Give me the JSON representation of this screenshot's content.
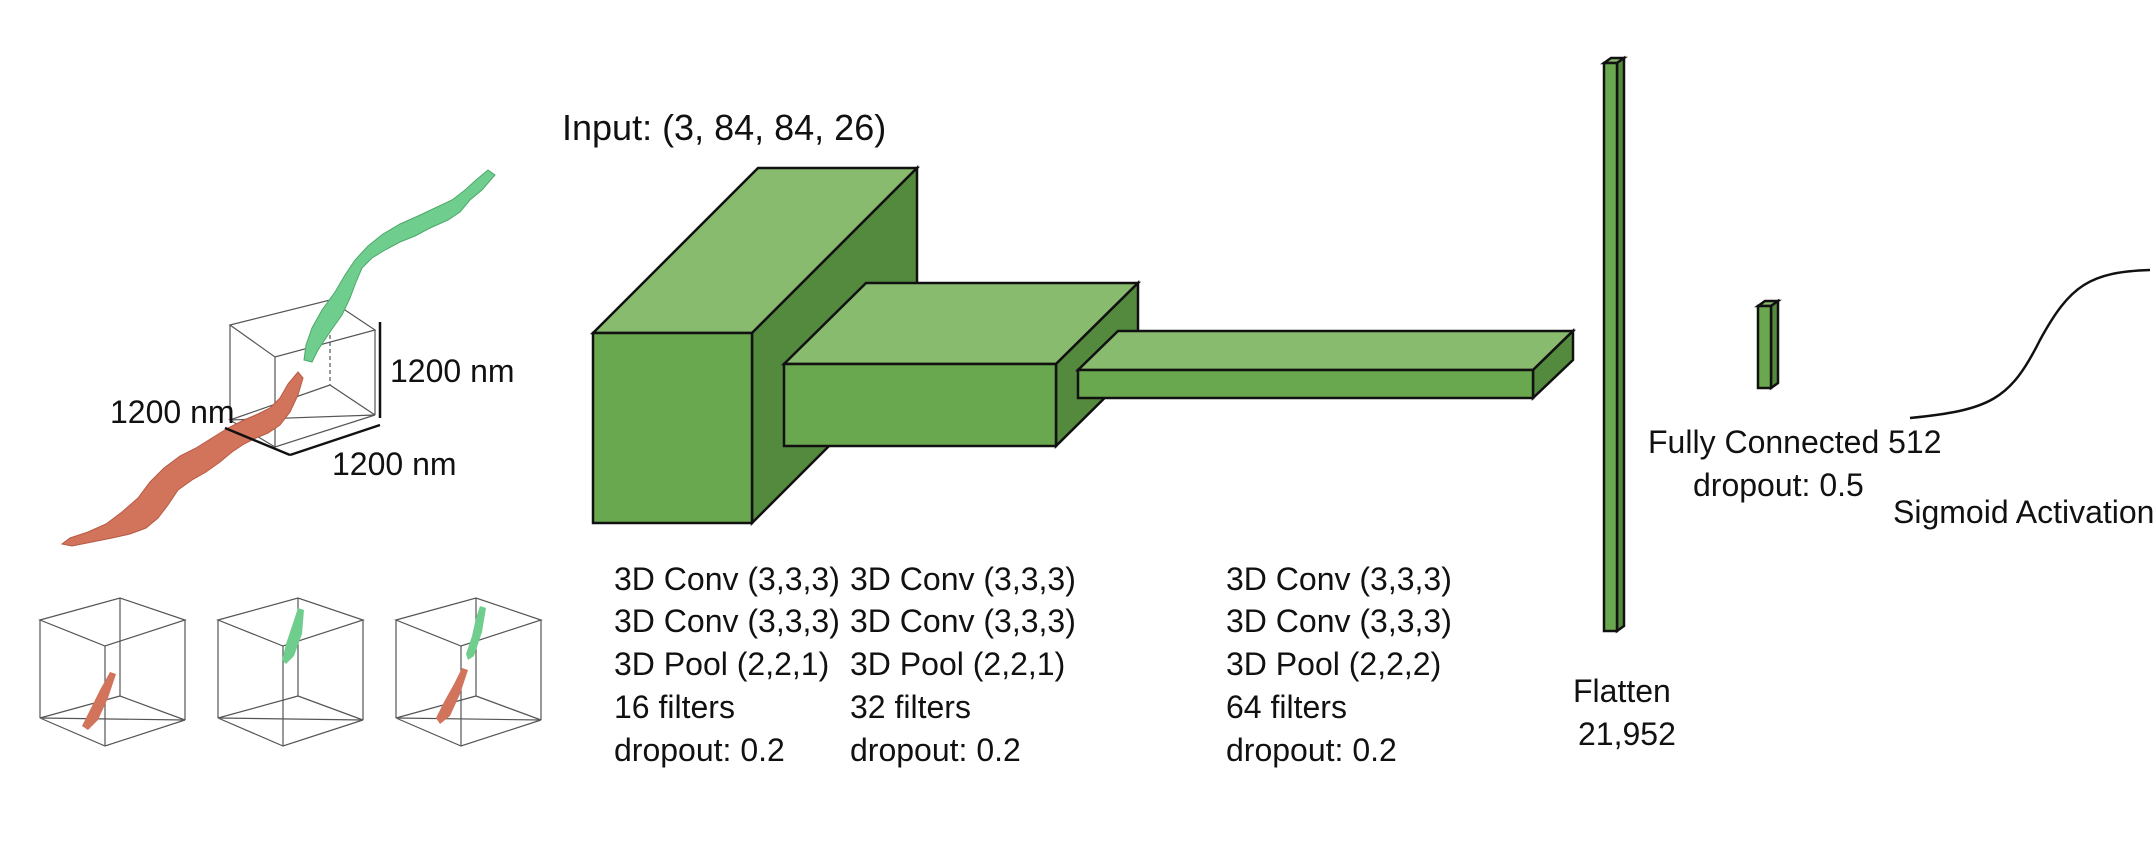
{
  "colors": {
    "block_front": "#6aa84f",
    "block_top": "#89bb6f",
    "block_side": "#548a3e",
    "neuron_green": "#6fce8d",
    "neuron_red": "#d2735c",
    "ink": "#111111"
  },
  "specimen": {
    "dim_x": "1200 nm",
    "dim_y": "1200 nm",
    "dim_z": "1200 nm"
  },
  "input": {
    "label": "Input: (3, 84, 84, 26)"
  },
  "conv_blocks": [
    {
      "lines": [
        "3D Conv (3,3,3)",
        "3D Conv (3,3,3)",
        "3D Pool (2,2,1)",
        "16 filters",
        "dropout: 0.2"
      ]
    },
    {
      "lines": [
        "3D Conv (3,3,3)",
        "3D Conv (3,3,3)",
        "3D Pool (2,2,1)",
        "32 filters",
        "dropout: 0.2"
      ]
    },
    {
      "lines": [
        "3D Conv (3,3,3)",
        "3D Conv (3,3,3)",
        "3D Pool (2,2,2)",
        "64 filters",
        "dropout: 0.2"
      ]
    }
  ],
  "flatten": {
    "label": "Flatten",
    "size": "21,952"
  },
  "fc": {
    "label": "Fully Connected 512",
    "dropout": "dropout: 0.5"
  },
  "activation": {
    "label": "Sigmoid Activation"
  }
}
